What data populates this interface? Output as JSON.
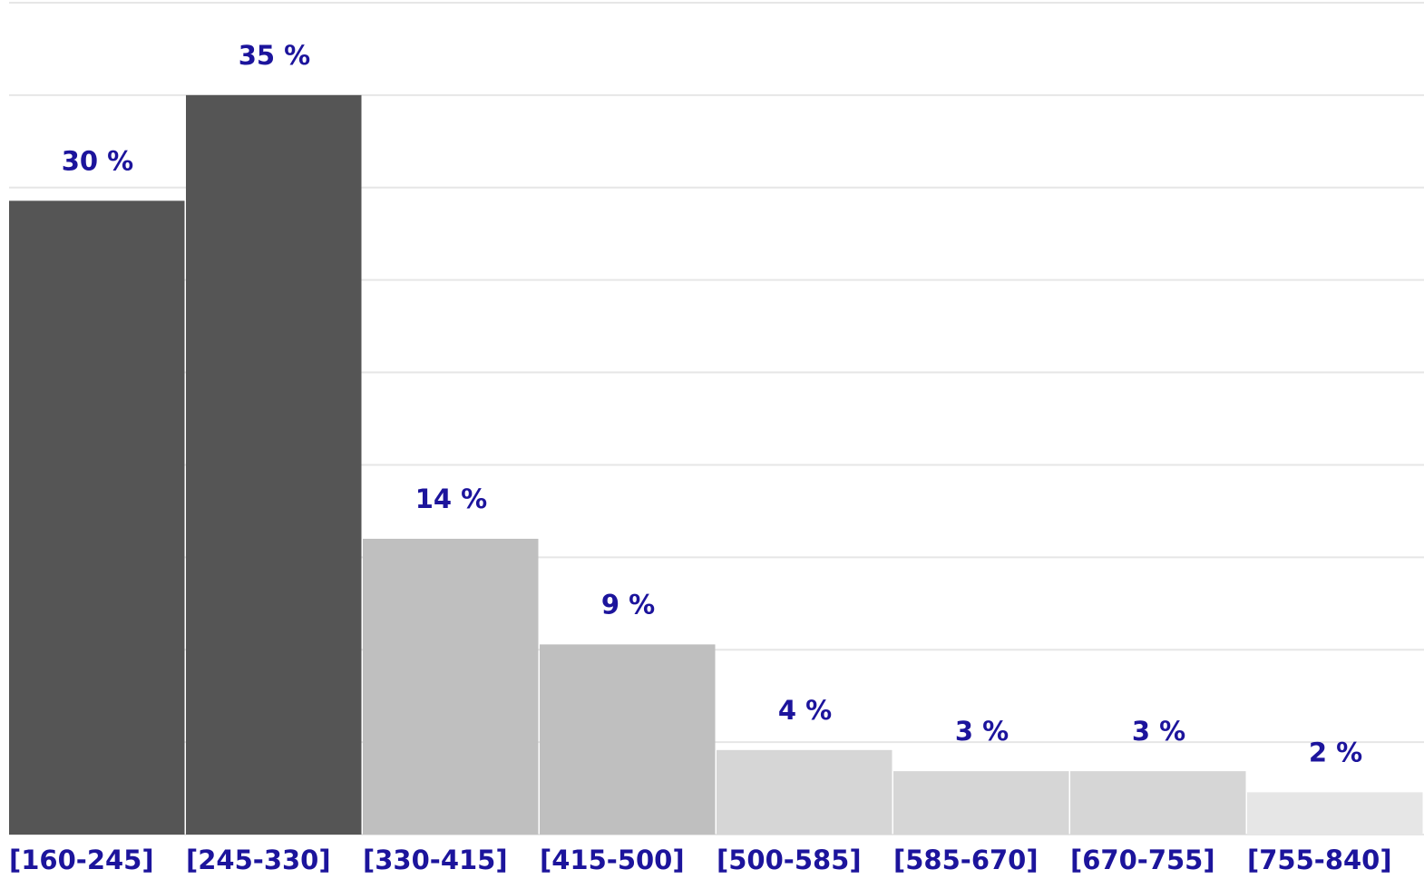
{
  "chart_data": {
    "type": "bar",
    "categories": [
      "[160-245]",
      "[245-330]",
      "[330-415]",
      "[415-500]",
      "[500-585]",
      "[585-670]",
      "[670-755]",
      "[755-840]"
    ],
    "values": [
      30,
      35,
      14,
      9,
      4,
      3,
      3,
      2
    ],
    "value_labels": [
      "30 %",
      "35 %",
      "14 %",
      "9 %",
      "4 %",
      "3 %",
      "3 %",
      "2 %"
    ],
    "colors": [
      "#555555",
      "#555555",
      "#bfbfbf",
      "#bfbfbf",
      "#d6d6d6",
      "#d6d6d6",
      "#d6d6d6",
      "#e6e6e6"
    ],
    "ylim": [
      0,
      39.375
    ],
    "grid": true
  }
}
